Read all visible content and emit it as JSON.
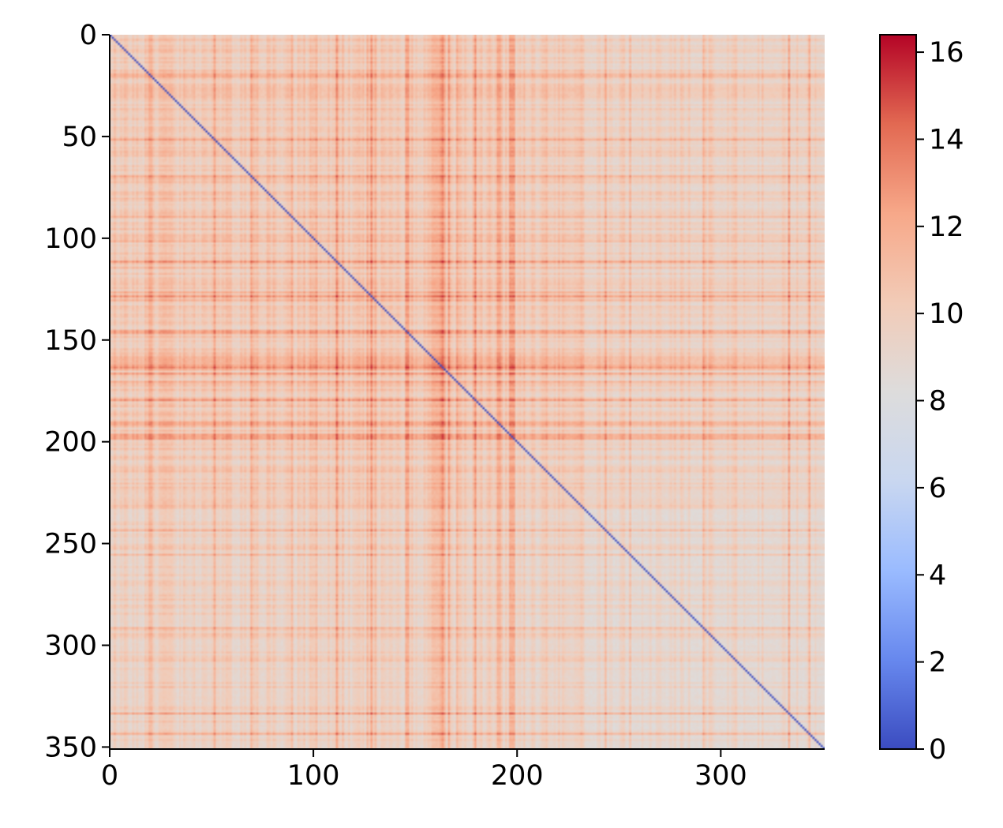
{
  "chart_data": {
    "type": "heatmap",
    "title": "",
    "xlabel": "",
    "ylabel": "",
    "n_rows": 351,
    "n_cols": 351,
    "xlim": [
      0,
      351
    ],
    "ylim": [
      351,
      0
    ],
    "x_ticks": [
      "0",
      "100",
      "200",
      "300"
    ],
    "y_ticks": [
      "0",
      "50",
      "100",
      "150",
      "200",
      "250",
      "300",
      "350"
    ],
    "x_tick_values": [
      0,
      100,
      200,
      300
    ],
    "y_tick_values": [
      0,
      50,
      100,
      150,
      200,
      250,
      300,
      350
    ],
    "colormap": "coolwarm",
    "colormap_stops": [
      "#3b4cc0",
      "#6788ee",
      "#9abbff",
      "#c9d7f0",
      "#dddcdc",
      "#f2cbb7",
      "#f7a889",
      "#e26952",
      "#b40426"
    ],
    "colorbar": {
      "min": 0,
      "max": 16.4,
      "ticks": [
        "0",
        "2",
        "4",
        "6",
        "8",
        "10",
        "12",
        "14",
        "16"
      ],
      "tick_values": [
        0,
        2,
        4,
        6,
        8,
        10,
        12,
        14,
        16
      ]
    },
    "diagonal_value": 0,
    "typical_value": 8.5,
    "transition_index": 233,
    "high_bands": [
      {
        "range": [
          145,
          147
        ],
        "level": 14.5
      },
      {
        "range": [
          158,
          165
        ],
        "level": 13.0
      },
      {
        "range": [
          163,
          164
        ],
        "level": 16.0
      },
      {
        "range": [
          190,
          192
        ],
        "level": 14.0
      },
      {
        "range": [
          196,
          199
        ],
        "level": 14.5
      }
    ]
  }
}
